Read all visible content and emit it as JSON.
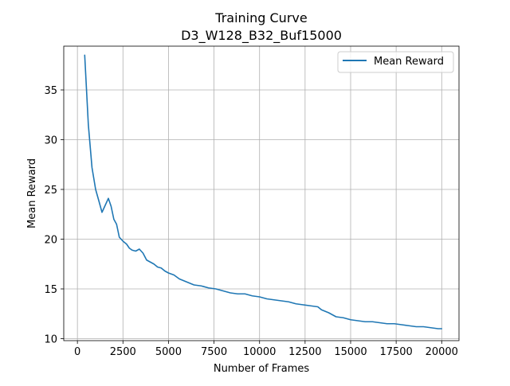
{
  "chart_data": {
    "type": "line",
    "title": "Training Curve",
    "subtitle": "D3_W128_B32_Buf15000",
    "xlabel": "Number of Frames",
    "ylabel": "Mean Reward",
    "xlim": [
      -750,
      20950
    ],
    "ylim": [
      9.8,
      39.4
    ],
    "x_ticks": [
      0,
      2500,
      5000,
      7500,
      10000,
      12500,
      15000,
      17500,
      20000
    ],
    "x_tick_labels": [
      "0",
      "2500",
      "5000",
      "7500",
      "10000",
      "12500",
      "15000",
      "17500",
      "20000"
    ],
    "y_ticks": [
      10,
      15,
      20,
      25,
      30,
      35
    ],
    "y_tick_labels": [
      "10",
      "15",
      "20",
      "25",
      "30",
      "35"
    ],
    "grid": true,
    "legend_position": "top-right",
    "series": [
      {
        "name": "Mean Reward",
        "color": "#1f77b4",
        "x": [
          400,
          600,
          800,
          1000,
          1200,
          1350,
          1500,
          1700,
          1850,
          2000,
          2150,
          2300,
          2500,
          2700,
          2850,
          3000,
          3200,
          3400,
          3600,
          3800,
          4000,
          4200,
          4400,
          4600,
          4800,
          5000,
          5300,
          5600,
          6000,
          6400,
          6800,
          7200,
          7600,
          8000,
          8400,
          8800,
          9200,
          9600,
          10000,
          10400,
          10800,
          11200,
          11600,
          12000,
          12400,
          12800,
          13200,
          13400,
          13800,
          14200,
          14600,
          15000,
          15400,
          15800,
          16200,
          16600,
          17000,
          17400,
          17800,
          18200,
          18600,
          19000,
          19400,
          19800,
          20000
        ],
        "y": [
          38.5,
          31.5,
          27.2,
          25.0,
          23.7,
          22.7,
          23.3,
          24.1,
          23.3,
          22.0,
          21.5,
          20.2,
          19.8,
          19.5,
          19.1,
          18.9,
          18.8,
          19.0,
          18.6,
          17.9,
          17.7,
          17.5,
          17.2,
          17.1,
          16.8,
          16.6,
          16.4,
          16.0,
          15.7,
          15.4,
          15.3,
          15.1,
          15.0,
          14.8,
          14.6,
          14.5,
          14.5,
          14.3,
          14.2,
          14.0,
          13.9,
          13.8,
          13.7,
          13.5,
          13.4,
          13.3,
          13.2,
          12.9,
          12.6,
          12.2,
          12.1,
          11.9,
          11.8,
          11.7,
          11.7,
          11.6,
          11.5,
          11.5,
          11.4,
          11.3,
          11.2,
          11.2,
          11.1,
          11.0,
          11.0
        ]
      }
    ]
  }
}
